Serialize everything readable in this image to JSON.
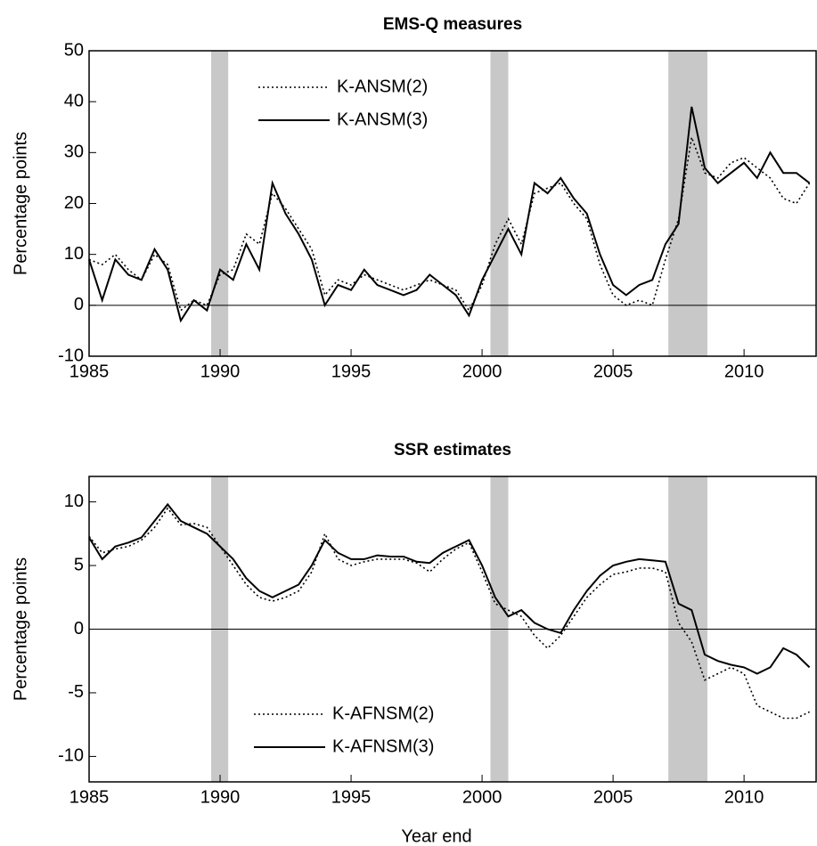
{
  "chart_data": [
    {
      "type": "line",
      "title": "EMS-Q measures",
      "ylabel": "Percentage points",
      "x": [
        1985,
        1985.5,
        1986,
        1986.5,
        1987,
        1987.5,
        1988,
        1988.5,
        1989,
        1989.5,
        1990,
        1990.5,
        1991,
        1991.5,
        1992,
        1992.5,
        1993,
        1993.5,
        1994,
        1994.5,
        1995,
        1995.5,
        1996,
        1996.5,
        1997,
        1997.5,
        1998,
        1998.5,
        1999,
        1999.5,
        2000,
        2000.5,
        2001,
        2001.5,
        2002,
        2002.5,
        2003,
        2003.5,
        2004,
        2004.5,
        2005,
        2005.5,
        2006,
        2006.5,
        2007,
        2007.5,
        2008,
        2008.5,
        2009,
        2009.5,
        2010,
        2010.5,
        2011,
        2011.5,
        2012,
        2012.5
      ],
      "series": [
        {
          "name": "K-ANSM(2)",
          "color": "#000000",
          "dash": "dotted",
          "values": [
            9,
            8,
            10,
            7,
            5,
            10,
            8,
            -1,
            1,
            0,
            6,
            7,
            14,
            12,
            22,
            19,
            15,
            11,
            2,
            5,
            4,
            6,
            5,
            4,
            3,
            4,
            5,
            4,
            3,
            -1,
            4,
            12,
            17,
            12,
            22,
            23,
            24,
            20,
            17,
            8,
            2,
            0,
            1,
            0,
            9,
            17,
            33,
            26,
            25,
            28,
            29,
            27,
            25,
            21,
            20,
            24
          ]
        },
        {
          "name": "K-ANSM(3)",
          "color": "#000000",
          "dash": "solid",
          "values": [
            9,
            1,
            9,
            6,
            5,
            11,
            7,
            -3,
            1,
            -1,
            7,
            5,
            12,
            7,
            24,
            18,
            14,
            9,
            0,
            4,
            3,
            7,
            4,
            3,
            2,
            3,
            6,
            4,
            2,
            -2,
            5,
            10,
            15,
            10,
            24,
            22,
            25,
            21,
            18,
            10,
            4,
            2,
            4,
            5,
            12,
            16,
            39,
            27,
            24,
            26,
            28,
            25,
            30,
            26,
            26,
            24
          ]
        }
      ],
      "shaded_regions": [
        [
          1989.66,
          1990.31
        ],
        [
          2000.32,
          2001.0
        ],
        [
          2007.11,
          2008.6
        ]
      ],
      "shade_color": "#c8c8c8",
      "hline": 0,
      "xlim": [
        1985,
        2012.75
      ],
      "xticks": [
        1985,
        1990,
        1995,
        2000,
        2005,
        2010
      ],
      "ylim": [
        -10,
        50
      ],
      "yticks": [
        -10,
        0,
        10,
        20,
        30,
        40,
        50
      ],
      "legend_loc": "upper left"
    },
    {
      "type": "line",
      "title": "SSR estimates",
      "ylabel": "Percentage points",
      "xlabel": "Year end",
      "x": [
        1985,
        1985.5,
        1986,
        1986.5,
        1987,
        1987.5,
        1988,
        1988.5,
        1989,
        1989.5,
        1990,
        1990.5,
        1991,
        1991.5,
        1992,
        1992.5,
        1993,
        1993.5,
        1994,
        1994.5,
        1995,
        1995.5,
        1996,
        1996.5,
        1997,
        1997.5,
        1998,
        1998.5,
        1999,
        1999.5,
        2000,
        2000.5,
        2001,
        2001.5,
        2002,
        2002.5,
        2003,
        2003.5,
        2004,
        2004.5,
        2005,
        2005.5,
        2006,
        2006.5,
        2007,
        2007.5,
        2008,
        2008.5,
        2009,
        2009.5,
        2010,
        2010.5,
        2011,
        2011.5,
        2012,
        2012.5
      ],
      "series": [
        {
          "name": "K-AFNSM(2)",
          "color": "#000000",
          "dash": "dotted",
          "values": [
            7.3,
            6,
            6.3,
            6.5,
            7,
            8,
            9.5,
            8.2,
            8.3,
            8,
            6.5,
            5,
            3.5,
            2.5,
            2.2,
            2.5,
            3,
            4.5,
            7.5,
            5.5,
            5,
            5.3,
            5.5,
            5.5,
            5.5,
            5.2,
            4.5,
            5.5,
            6.3,
            6.8,
            4.5,
            2,
            1.5,
            1,
            -0.5,
            -1.5,
            -0.5,
            1,
            2.5,
            3.5,
            4.3,
            4.5,
            4.8,
            4.8,
            4.5,
            0.5,
            -1,
            -4,
            -3.5,
            -3,
            -3.5,
            -6,
            -6.5,
            -7,
            -7,
            -6.5
          ]
        },
        {
          "name": "K-AFNSM(3)",
          "color": "#000000",
          "dash": "solid",
          "values": [
            7.2,
            5.5,
            6.5,
            6.8,
            7.2,
            8.5,
            9.8,
            8.5,
            8,
            7.5,
            6.5,
            5.5,
            4,
            3,
            2.5,
            3,
            3.5,
            5,
            7,
            6,
            5.5,
            5.5,
            5.8,
            5.7,
            5.7,
            5.3,
            5.2,
            6,
            6.5,
            7,
            5,
            2.5,
            1,
            1.5,
            0.5,
            0,
            -0.3,
            1.5,
            3,
            4.2,
            5,
            5.3,
            5.5,
            5.4,
            5.3,
            2,
            1.5,
            -2,
            -2.5,
            -2.8,
            -3,
            -3.5,
            -3,
            -1.5,
            -2,
            -3
          ]
        }
      ],
      "shaded_regions": [
        [
          1989.66,
          1990.31
        ],
        [
          2000.32,
          2001.0
        ],
        [
          2007.11,
          2008.6
        ]
      ],
      "shade_color": "#c8c8c8",
      "hline": 0,
      "xlim": [
        1985,
        2012.75
      ],
      "xticks": [
        1985,
        1990,
        1995,
        2000,
        2005,
        2010
      ],
      "ylim": [
        -12,
        12
      ],
      "yticks": [
        -10,
        -5,
        0,
        5,
        10
      ],
      "legend_loc": "lower center"
    }
  ]
}
